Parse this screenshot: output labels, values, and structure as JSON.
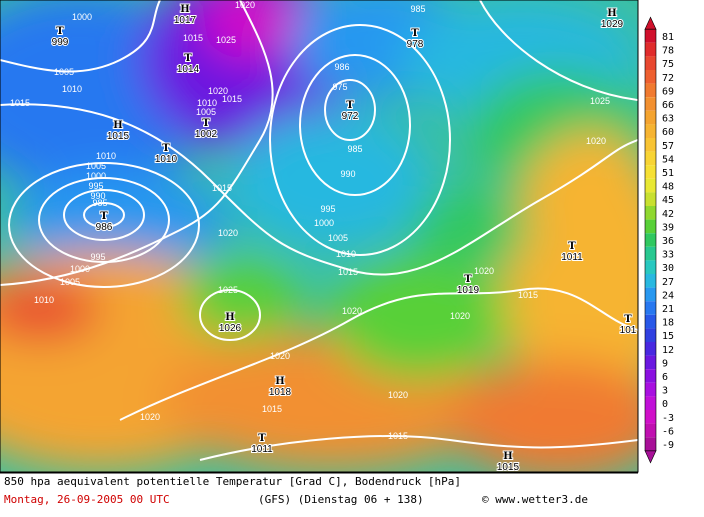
{
  "map": {
    "pressure_centers": [
      {
        "symbol": "T",
        "pressure": "999"
      },
      {
        "symbol": "H",
        "pressure": "1017"
      },
      {
        "symbol": "T",
        "pressure": "1014"
      },
      {
        "symbol": "T",
        "pressure": "972"
      },
      {
        "symbol": "T",
        "pressure": "978"
      },
      {
        "symbol": "H",
        "pressure": "1029"
      },
      {
        "symbol": "H",
        "pressure": "1015"
      },
      {
        "symbol": "T",
        "pressure": "1002"
      },
      {
        "symbol": "T",
        "pressure": "1010"
      },
      {
        "symbol": "T",
        "pressure": "986"
      },
      {
        "symbol": "H",
        "pressure": "1026"
      },
      {
        "symbol": "T",
        "pressure": "1011"
      },
      {
        "symbol": "T",
        "pressure": "1019"
      },
      {
        "symbol": "H",
        "pressure": "1018"
      },
      {
        "symbol": "T",
        "pressure": "1011"
      },
      {
        "symbol": "H",
        "pressure": "1015"
      },
      {
        "symbol": "T",
        "pressure": "101"
      }
    ],
    "isobar_labels": [
      "1000",
      "1005",
      "1010",
      "1015",
      "1015",
      "1025",
      "1020",
      "1010",
      "1005",
      "1015",
      "986",
      "975",
      "985",
      "990",
      "995",
      "1000",
      "1005",
      "1010",
      "1015",
      "985",
      "1020",
      "1025",
      "1020",
      "1015",
      "1020",
      "1010",
      "1005",
      "1000",
      "995",
      "990",
      "985",
      "995",
      "1000",
      "1005",
      "1010",
      "1025",
      "1020",
      "1020",
      "1015",
      "1020",
      "1020",
      "1015",
      "1020",
      "1020",
      "1015"
    ]
  },
  "colorbar": {
    "labels": [
      81,
      78,
      75,
      72,
      69,
      66,
      63,
      60,
      57,
      54,
      51,
      48,
      45,
      42,
      39,
      36,
      33,
      30,
      27,
      24,
      21,
      18,
      15,
      12,
      9,
      6,
      3,
      0,
      -3,
      -6,
      -9
    ],
    "colors": [
      "#d0102c",
      "#e02c2c",
      "#e84830",
      "#ee6030",
      "#f07a30",
      "#f29030",
      "#f4a430",
      "#f6b432",
      "#f8c434",
      "#f8d434",
      "#f6e034",
      "#e8e834",
      "#c8e030",
      "#90d830",
      "#58d038",
      "#30c860",
      "#28c890",
      "#28c8c0",
      "#28b8e0",
      "#2898f0",
      "#2878f0",
      "#2858e8",
      "#3040e0",
      "#4828e0",
      "#6a18e0",
      "#8a10e0",
      "#a810e0",
      "#c010d8",
      "#d010c8",
      "#c010b0",
      "#a81098"
    ]
  },
  "footer": {
    "title": "850 hpa aequivalent potentielle Temperatur [Grad C], Bodendruck [hPa]",
    "date": "Montag, 26-09-2005  00 UTC",
    "model": "(GFS)  (Dienstag 06 + 138)",
    "credit": "© www.wetter3.de"
  }
}
